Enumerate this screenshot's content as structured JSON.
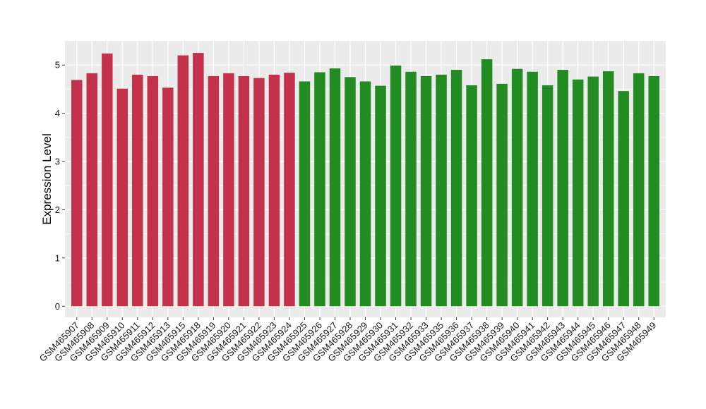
{
  "chart_data": {
    "type": "bar",
    "title": "",
    "xlabel": "",
    "ylabel": "Expression Level",
    "ylim": [
      -0.23,
      5.5
    ],
    "yticks": [
      0,
      1,
      2,
      3,
      4,
      5
    ],
    "grid": true,
    "legend": "none",
    "colors": {
      "group_1": "#c4314b",
      "group_2": "#228b22",
      "panel_bg": "#ebebeb",
      "grid": "#ffffff"
    },
    "categories": [
      "GSM465907",
      "GSM465908",
      "GSM465909",
      "GSM465910",
      "GSM465911",
      "GSM465912",
      "GSM465913",
      "GSM465915",
      "GSM465918",
      "GSM465919",
      "GSM465920",
      "GSM465921",
      "GSM465922",
      "GSM465923",
      "GSM465924",
      "GSM465925",
      "GSM465926",
      "GSM465927",
      "GSM465928",
      "GSM465929",
      "GSM465930",
      "GSM465931",
      "GSM465932",
      "GSM465933",
      "GSM465935",
      "GSM465936",
      "GSM465937",
      "GSM465938",
      "GSM465939",
      "GSM465940",
      "GSM465941",
      "GSM465942",
      "GSM465943",
      "GSM465944",
      "GSM465945",
      "GSM465946",
      "GSM465947",
      "GSM465948",
      "GSM465949"
    ],
    "values": [
      4.69,
      4.83,
      5.24,
      4.51,
      4.8,
      4.77,
      4.53,
      5.2,
      5.25,
      4.77,
      4.83,
      4.77,
      4.73,
      4.8,
      4.84,
      4.66,
      4.85,
      4.93,
      4.75,
      4.66,
      4.57,
      4.99,
      4.86,
      4.77,
      4.8,
      4.9,
      4.58,
      5.12,
      4.61,
      4.92,
      4.86,
      4.58,
      4.9,
      4.7,
      4.76,
      4.87,
      4.46,
      4.83,
      4.77
    ],
    "groups": [
      "group_1",
      "group_1",
      "group_1",
      "group_1",
      "group_1",
      "group_1",
      "group_1",
      "group_1",
      "group_1",
      "group_1",
      "group_1",
      "group_1",
      "group_1",
      "group_1",
      "group_1",
      "group_2",
      "group_2",
      "group_2",
      "group_2",
      "group_2",
      "group_2",
      "group_2",
      "group_2",
      "group_2",
      "group_2",
      "group_2",
      "group_2",
      "group_2",
      "group_2",
      "group_2",
      "group_2",
      "group_2",
      "group_2",
      "group_2",
      "group_2",
      "group_2",
      "group_2",
      "group_2",
      "group_2"
    ]
  }
}
